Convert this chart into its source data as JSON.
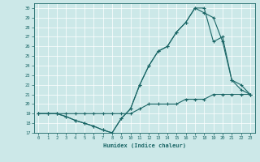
{
  "xlabel": "Humidex (Indice chaleur)",
  "bg_color": "#cce8e8",
  "line_color": "#1a6666",
  "xlim": [
    -0.5,
    23.5
  ],
  "ylim": [
    17,
    30.5
  ],
  "xticks": [
    0,
    1,
    2,
    3,
    4,
    5,
    6,
    7,
    8,
    9,
    10,
    11,
    12,
    13,
    14,
    15,
    16,
    17,
    18,
    19,
    20,
    21,
    22,
    23
  ],
  "yticks": [
    17,
    18,
    19,
    20,
    21,
    22,
    23,
    24,
    25,
    26,
    27,
    28,
    29,
    30
  ],
  "line1_x": [
    0,
    1,
    2,
    3,
    4,
    5,
    6,
    7,
    8,
    9,
    10,
    11,
    12,
    13,
    14,
    15,
    16,
    17,
    18,
    19,
    20,
    21,
    22,
    23
  ],
  "line1_y": [
    19,
    19,
    19,
    19,
    19,
    19,
    19,
    19,
    19,
    19,
    19,
    19.5,
    20,
    20,
    20,
    20,
    20.5,
    20.5,
    20.5,
    21,
    21,
    21,
    21,
    21
  ],
  "line2_x": [
    0,
    1,
    2,
    3,
    4,
    5,
    6,
    7,
    8,
    9,
    10,
    11,
    12,
    13,
    14,
    15,
    16,
    17,
    18,
    19,
    20,
    21,
    22,
    23
  ],
  "line2_y": [
    19,
    19,
    19,
    18.7,
    18.3,
    18.0,
    17.7,
    17.3,
    17.0,
    18.5,
    19.5,
    22.0,
    24.0,
    25.5,
    26.0,
    27.5,
    28.5,
    30.0,
    29.5,
    29.0,
    26.5,
    22.5,
    22.0,
    21.0
  ],
  "line3_x": [
    0,
    1,
    2,
    3,
    4,
    5,
    6,
    7,
    8,
    9,
    10,
    11,
    12,
    13,
    14,
    15,
    16,
    17,
    18,
    19,
    20,
    21,
    22,
    23
  ],
  "line3_y": [
    19,
    19,
    19,
    18.7,
    18.3,
    18.0,
    17.7,
    17.3,
    17.0,
    18.5,
    19.5,
    22.0,
    24.0,
    25.5,
    26.0,
    27.5,
    28.5,
    30.0,
    30.0,
    26.5,
    27.0,
    22.5,
    21.5,
    21.0
  ]
}
